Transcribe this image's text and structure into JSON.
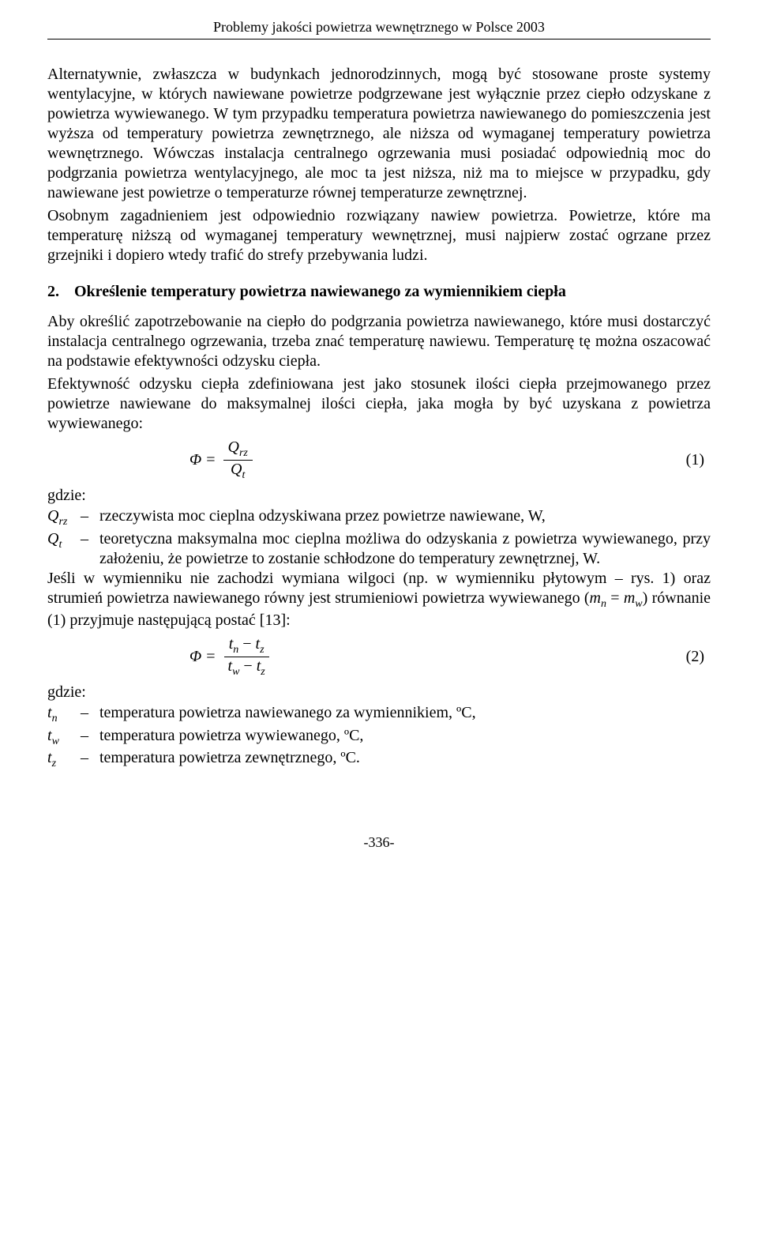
{
  "header": "Problemy jakości powietrza wewnętrznego w Polsce 2003",
  "para1": "Alternatywnie, zwłaszcza w budynkach jednorodzinnych, mogą być stosowane proste systemy wentylacyjne, w których nawiewane powietrze podgrzewane jest wyłącznie przez ciepło odzyskane z powietrza wywiewanego. W tym przypadku temperatura powietrza nawiewanego do pomieszczenia jest wyższa od temperatury powietrza zewnętrznego, ale niższa od wymaganej temperatury powietrza wewnętrznego. Wówczas instalacja centralnego ogrzewania musi posiadać odpowiednią moc do podgrzania powietrza wentylacyjnego, ale moc ta jest niższa, niż ma to miejsce w przypadku, gdy nawiewane jest powietrze o temperaturze równej temperaturze zewnętrznej.",
  "para2": "Osobnym zagadnieniem jest odpowiednio rozwiązany nawiew powietrza. Powietrze, które ma temperaturę niższą od wymaganej temperatury wewnętrznej, musi najpierw zostać ogrzane przez grzejniki i dopiero wtedy trafić do strefy przebywania ludzi.",
  "section": {
    "num": "2.",
    "title": "Określenie temperatury powietrza nawiewanego za wymiennikiem ciepła"
  },
  "para3": "Aby określić zapotrzebowanie na ciepło do podgrzania powietrza nawiewanego, które musi dostarczyć instalacja centralnego ogrzewania, trzeba znać temperaturę nawiewu. Temperaturę tę można oszacować na podstawie efektywności odzysku ciepła.",
  "para4": "Efektywność odzysku ciepła zdefiniowana jest jako stosunek ilości ciepła przejmowanego przez powietrze nawiewane do maksymalnej ilości ciepła, jaka mogła by być uzyskana z powietrza wywiewanego:",
  "eq1": {
    "lhs": "Φ",
    "eq": "=",
    "num": "Q",
    "num_sub": "rz",
    "den": "Q",
    "den_sub": "t",
    "label": "(1)"
  },
  "where": "gdzie:",
  "def1": {
    "sym": "Q",
    "sym_sub": "rz",
    "dash": "–",
    "text": "rzeczywista moc cieplna odzyskiwana przez powietrze nawiewane, W,"
  },
  "def2": {
    "sym": "Q",
    "sym_sub": "t",
    "dash": "–",
    "text": "teoretyczna maksymalna moc cieplna możliwa do odzyskania z powietrza wywiewanego, przy założeniu, że powietrze to zostanie schłodzone do temperatury zewnętrznej, W."
  },
  "para5a": "Jeśli w wymienniku nie zachodzi wymiana wilgoci (np. w wymienniku płytowym – rys. 1) oraz strumień powietrza nawiewanego równy jest strumieniowi powietrza wywiewanego (",
  "para5b": ") równanie (1) przyjmuje następującą postać [13]:",
  "mn": "m",
  "mn_sub": "n",
  "eqsym": " = ",
  "mw": "m",
  "mw_sub": "w",
  "eq2": {
    "lhs": "Φ",
    "eq": "=",
    "num_a": "t",
    "num_a_sub": "n",
    "minus": " − ",
    "num_b": "t",
    "num_b_sub": "z",
    "den_a": "t",
    "den_a_sub": "w",
    "den_b": "t",
    "den_b_sub": "z",
    "label": "(2)"
  },
  "def3": {
    "sym": "t",
    "sym_sub": "n",
    "dash": "–",
    "text": "temperatura powietrza nawiewanego za wymiennikiem, ºC,"
  },
  "def4": {
    "sym": "t",
    "sym_sub": "w",
    "dash": "–",
    "text": "temperatura powietrza wywiewanego, ºC,"
  },
  "def5": {
    "sym": "t",
    "sym_sub": "z",
    "dash": "–",
    "text": "temperatura powietrza zewnętrznego, ºC."
  },
  "footer": "-336-"
}
